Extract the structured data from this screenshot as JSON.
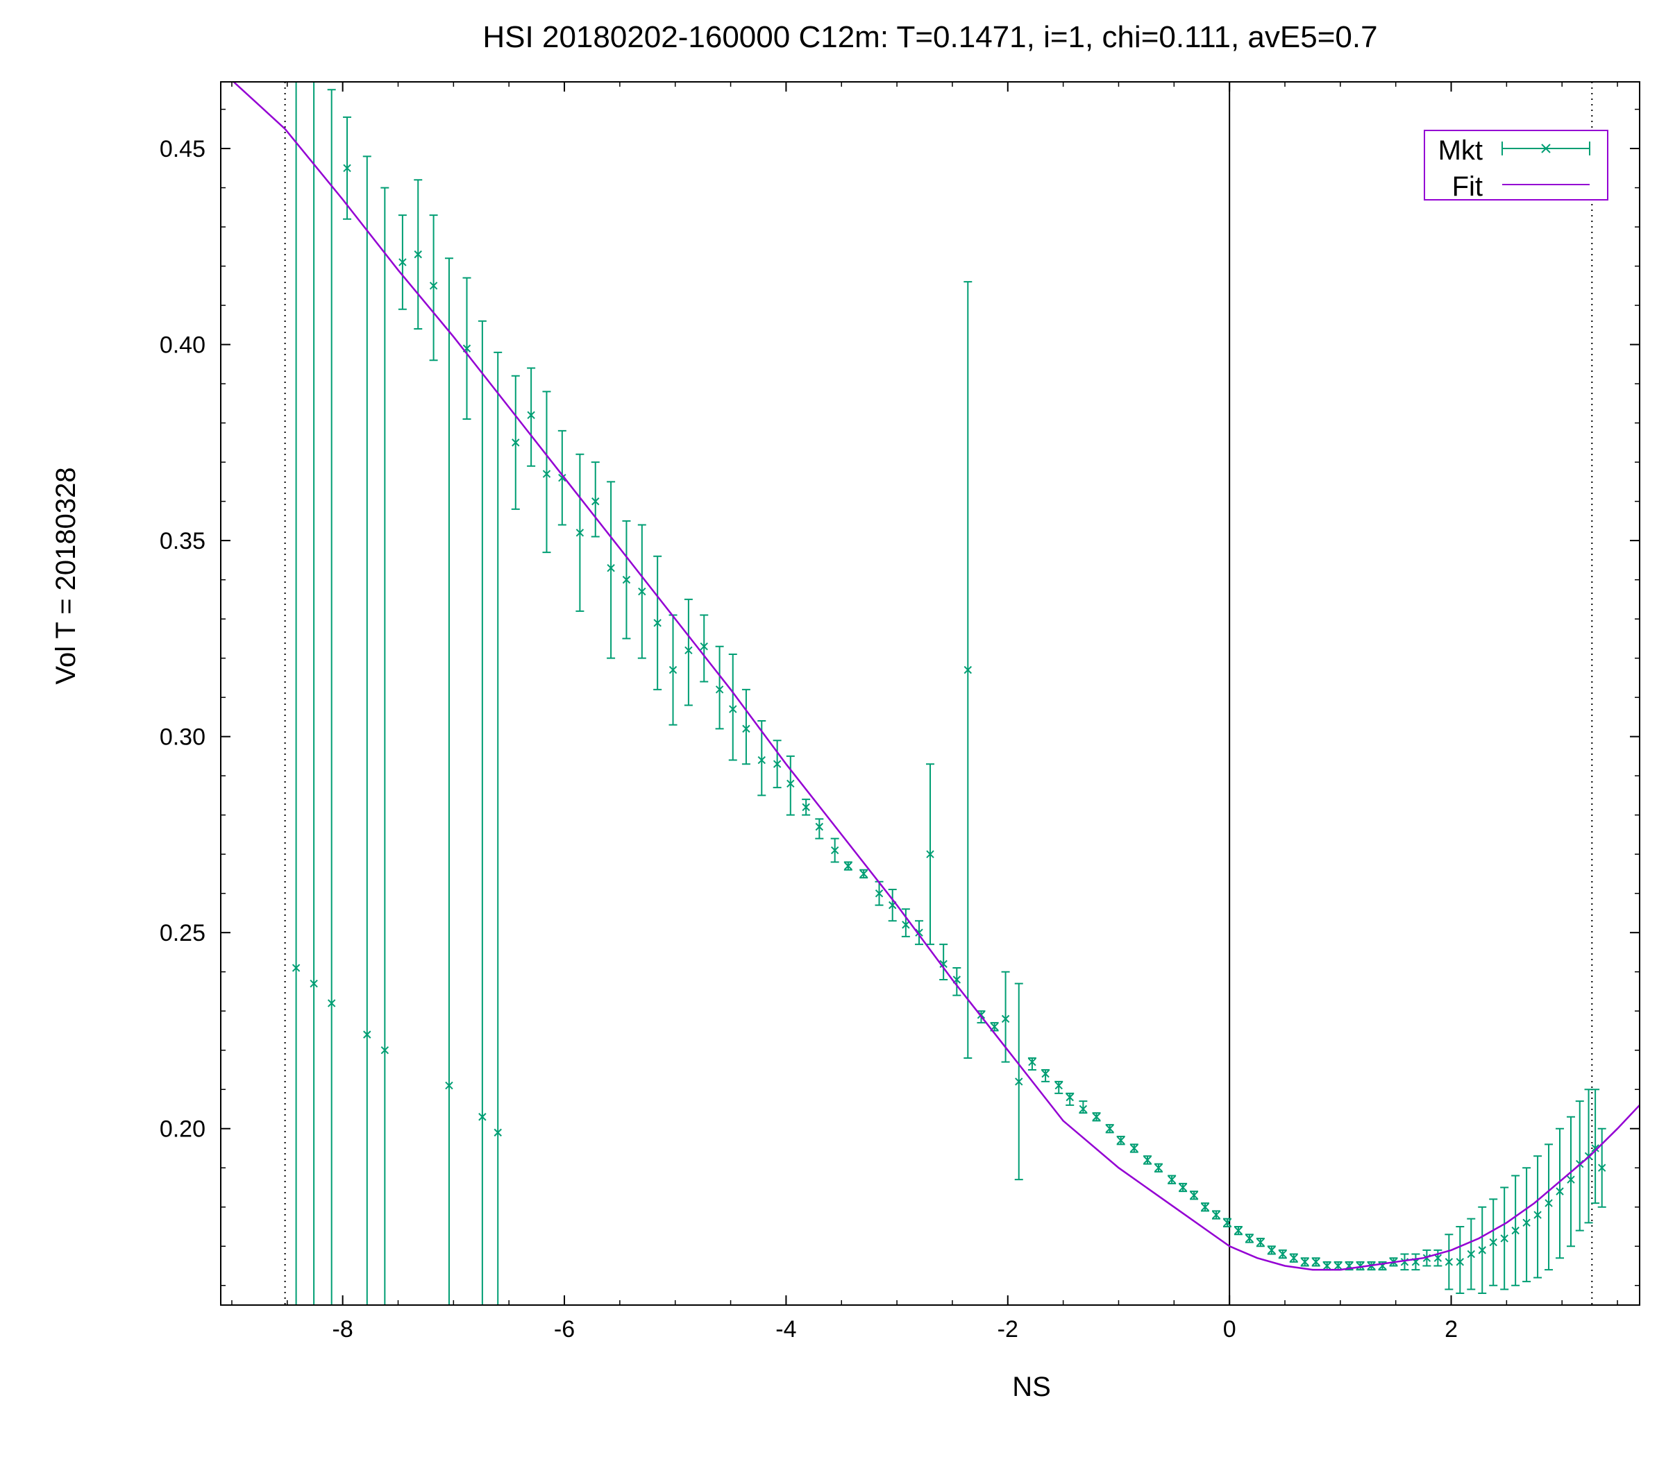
{
  "chart_data": {
    "type": "scatter",
    "title": "HSI 20180202-160000  C12m:  T=0.1471, i=1, chi=0.111, avE5=0.7",
    "xlabel": "NS",
    "ylabel": "Vol   T = 20180328",
    "xlim": [
      -9.1,
      3.7
    ],
    "ylim": [
      0.155,
      0.467
    ],
    "x_ticks": [
      -8,
      -6,
      -4,
      -2,
      0,
      2
    ],
    "x_tick_labels": [
      "-8",
      "-6",
      "-4",
      "-2",
      "0",
      "2"
    ],
    "y_ticks": [
      0.2,
      0.25,
      0.3,
      0.35,
      0.4,
      0.45
    ],
    "y_tick_labels": [
      "0.20",
      "0.25",
      "0.30",
      "0.35",
      "0.40",
      "0.45"
    ],
    "vertical_lines": [
      {
        "x": 0,
        "style": "solid"
      },
      {
        "x": -8.52,
        "style": "dotted"
      },
      {
        "x": 3.27,
        "style": "dotted"
      }
    ],
    "grid": false,
    "legend": {
      "position": "top-right",
      "entries": [
        "Mkt",
        "Fit"
      ]
    },
    "colors": {
      "Mkt": "#009e73",
      "Fit": "#9400d3",
      "legend_border": "#9400d3",
      "axis": "#000000"
    },
    "series": [
      {
        "name": "Mkt",
        "kind": "errorbars",
        "points": [
          [
            -8.42,
            0.241,
            0.155,
            0.467
          ],
          [
            -8.26,
            0.237,
            0.155,
            0.467
          ],
          [
            -8.1,
            0.232,
            0.155,
            0.465
          ],
          [
            -7.96,
            0.445,
            0.432,
            0.458
          ],
          [
            -7.78,
            0.224,
            0.155,
            0.448
          ],
          [
            -7.62,
            0.22,
            0.155,
            0.44
          ],
          [
            -7.46,
            0.421,
            0.409,
            0.433
          ],
          [
            -7.32,
            0.423,
            0.404,
            0.442
          ],
          [
            -7.18,
            0.415,
            0.396,
            0.433
          ],
          [
            -7.04,
            0.211,
            0.155,
            0.422
          ],
          [
            -6.88,
            0.399,
            0.381,
            0.417
          ],
          [
            -6.74,
            0.203,
            0.155,
            0.406
          ],
          [
            -6.6,
            0.199,
            0.155,
            0.398
          ],
          [
            -6.44,
            0.375,
            0.358,
            0.392
          ],
          [
            -6.3,
            0.382,
            0.369,
            0.394
          ],
          [
            -6.16,
            0.367,
            0.347,
            0.388
          ],
          [
            -6.02,
            0.366,
            0.354,
            0.378
          ],
          [
            -5.86,
            0.352,
            0.332,
            0.372
          ],
          [
            -5.72,
            0.36,
            0.351,
            0.37
          ],
          [
            -5.58,
            0.343,
            0.32,
            0.365
          ],
          [
            -5.44,
            0.34,
            0.325,
            0.355
          ],
          [
            -5.3,
            0.337,
            0.32,
            0.354
          ],
          [
            -5.16,
            0.329,
            0.312,
            0.346
          ],
          [
            -5.02,
            0.317,
            0.303,
            0.331
          ],
          [
            -4.88,
            0.322,
            0.308,
            0.335
          ],
          [
            -4.74,
            0.323,
            0.314,
            0.331
          ],
          [
            -4.6,
            0.312,
            0.302,
            0.323
          ],
          [
            -4.48,
            0.307,
            0.294,
            0.321
          ],
          [
            -4.36,
            0.302,
            0.293,
            0.312
          ],
          [
            -4.22,
            0.294,
            0.285,
            0.304
          ],
          [
            -4.08,
            0.293,
            0.287,
            0.299
          ],
          [
            -3.96,
            0.288,
            0.28,
            0.295
          ],
          [
            -3.82,
            0.282,
            0.28,
            0.284
          ],
          [
            -3.7,
            0.277,
            0.274,
            0.279
          ],
          [
            -3.56,
            0.271,
            0.268,
            0.274
          ],
          [
            -3.44,
            0.267,
            0.266,
            0.268
          ],
          [
            -3.3,
            0.265,
            0.264,
            0.266
          ],
          [
            -3.16,
            0.26,
            0.257,
            0.263
          ],
          [
            -3.04,
            0.257,
            0.253,
            0.261
          ],
          [
            -2.92,
            0.252,
            0.249,
            0.256
          ],
          [
            -2.8,
            0.25,
            0.247,
            0.253
          ],
          [
            -2.7,
            0.27,
            0.247,
            0.293
          ],
          [
            -2.58,
            0.242,
            0.238,
            0.247
          ],
          [
            -2.46,
            0.238,
            0.234,
            0.241
          ],
          [
            -2.36,
            0.317,
            0.218,
            0.416
          ],
          [
            -2.24,
            0.229,
            0.227,
            0.23
          ],
          [
            -2.12,
            0.226,
            0.225,
            0.227
          ],
          [
            -2.02,
            0.228,
            0.217,
            0.24
          ],
          [
            -1.9,
            0.212,
            0.187,
            0.237
          ],
          [
            -1.78,
            0.217,
            0.215,
            0.218
          ],
          [
            -1.66,
            0.214,
            0.212,
            0.215
          ],
          [
            -1.54,
            0.211,
            0.209,
            0.212
          ],
          [
            -1.44,
            0.208,
            0.206,
            0.209
          ],
          [
            -1.32,
            0.205,
            0.204,
            0.207
          ],
          [
            -1.2,
            0.203,
            0.202,
            0.204
          ],
          [
            -1.08,
            0.2,
            0.199,
            0.201
          ],
          [
            -0.98,
            0.197,
            0.196,
            0.198
          ],
          [
            -0.86,
            0.195,
            0.194,
            0.196
          ],
          [
            -0.74,
            0.192,
            0.191,
            0.193
          ],
          [
            -0.64,
            0.19,
            0.189,
            0.191
          ],
          [
            -0.52,
            0.187,
            0.186,
            0.188
          ],
          [
            -0.42,
            0.185,
            0.184,
            0.186
          ],
          [
            -0.32,
            0.183,
            0.182,
            0.184
          ],
          [
            -0.22,
            0.18,
            0.179,
            0.181
          ],
          [
            -0.12,
            0.178,
            0.177,
            0.179
          ],
          [
            -0.02,
            0.176,
            0.175,
            0.177
          ],
          [
            0.08,
            0.174,
            0.173,
            0.175
          ],
          [
            0.18,
            0.172,
            0.171,
            0.173
          ],
          [
            0.28,
            0.171,
            0.17,
            0.172
          ],
          [
            0.38,
            0.169,
            0.168,
            0.17
          ],
          [
            0.48,
            0.168,
            0.167,
            0.169
          ],
          [
            0.58,
            0.167,
            0.166,
            0.168
          ],
          [
            0.68,
            0.166,
            0.165,
            0.167
          ],
          [
            0.78,
            0.166,
            0.165,
            0.167
          ],
          [
            0.88,
            0.165,
            0.164,
            0.166
          ],
          [
            0.98,
            0.165,
            0.164,
            0.166
          ],
          [
            1.08,
            0.165,
            0.164,
            0.166
          ],
          [
            1.18,
            0.165,
            0.164,
            0.166
          ],
          [
            1.28,
            0.165,
            0.164,
            0.166
          ],
          [
            1.38,
            0.165,
            0.164,
            0.166
          ],
          [
            1.48,
            0.166,
            0.165,
            0.167
          ],
          [
            1.58,
            0.166,
            0.164,
            0.168
          ],
          [
            1.68,
            0.166,
            0.164,
            0.168
          ],
          [
            1.78,
            0.167,
            0.165,
            0.169
          ],
          [
            1.88,
            0.167,
            0.165,
            0.169
          ],
          [
            1.98,
            0.166,
            0.159,
            0.173
          ],
          [
            2.08,
            0.166,
            0.158,
            0.175
          ],
          [
            2.18,
            0.168,
            0.159,
            0.177
          ],
          [
            2.28,
            0.169,
            0.158,
            0.18
          ],
          [
            2.38,
            0.171,
            0.16,
            0.182
          ],
          [
            2.48,
            0.172,
            0.159,
            0.185
          ],
          [
            2.58,
            0.174,
            0.16,
            0.188
          ],
          [
            2.68,
            0.176,
            0.161,
            0.19
          ],
          [
            2.78,
            0.178,
            0.162,
            0.193
          ],
          [
            2.88,
            0.181,
            0.164,
            0.196
          ],
          [
            2.98,
            0.184,
            0.167,
            0.2
          ],
          [
            3.08,
            0.187,
            0.17,
            0.203
          ],
          [
            3.16,
            0.191,
            0.174,
            0.207
          ],
          [
            3.24,
            0.193,
            0.176,
            0.21
          ],
          [
            3.3,
            0.195,
            0.181,
            0.21
          ],
          [
            3.36,
            0.19,
            0.18,
            0.2
          ]
        ]
      },
      {
        "name": "Fit",
        "kind": "line",
        "x": [
          -9.1,
          -8.52,
          -8,
          -7.5,
          -7,
          -6.5,
          -6,
          -5.5,
          -5,
          -4.5,
          -4,
          -3.5,
          -3,
          -2.5,
          -2,
          -1.5,
          -1,
          -0.5,
          0,
          0.25,
          0.5,
          0.75,
          1,
          1.25,
          1.5,
          1.75,
          2,
          2.25,
          2.5,
          2.75,
          3,
          3.25,
          3.5,
          3.7
        ],
        "y": [
          0.47,
          0.455,
          0.437,
          0.419,
          0.402,
          0.384,
          0.366,
          0.348,
          0.33,
          0.312,
          0.293,
          0.275,
          0.257,
          0.238,
          0.22,
          0.202,
          0.19,
          0.18,
          0.17,
          0.167,
          0.165,
          0.164,
          0.164,
          0.165,
          0.166,
          0.167,
          0.169,
          0.172,
          0.176,
          0.181,
          0.187,
          0.193,
          0.2,
          0.206
        ]
      }
    ]
  }
}
